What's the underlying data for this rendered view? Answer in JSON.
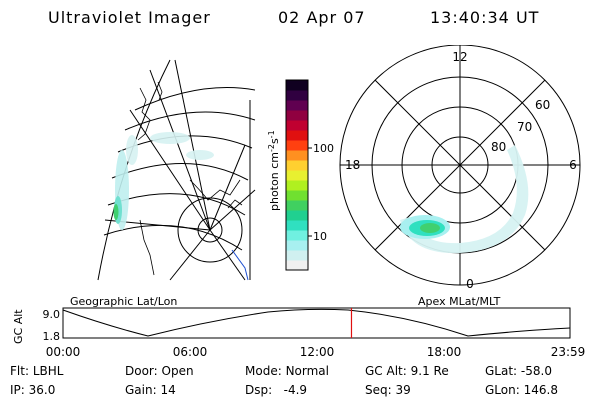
{
  "header": {
    "title": "Ultraviolet Imager",
    "date": "02 Apr 07",
    "time": "13:40:34 UT"
  },
  "colorbar": {
    "label": "photon cm",
    "label_sup1": "-2",
    "label_mid": "s",
    "label_sup2": "-1",
    "tick_high": "100",
    "tick_low": "10",
    "colors": [
      "#f0f0f0",
      "#d0f0f0",
      "#a8f0f0",
      "#70f0e0",
      "#30e0c0",
      "#20d090",
      "#40d060",
      "#70e030",
      "#b0f020",
      "#e8f030",
      "#ffd030",
      "#ff9020",
      "#ff4010",
      "#e01010",
      "#c00030",
      "#900040",
      "#600050",
      "#300040",
      "#100020"
    ]
  },
  "left_map": {
    "caption": "Geographic Lat/Lon"
  },
  "right_map": {
    "caption": "Apex MLat/MLT",
    "mlt_labels": {
      "top": "12",
      "left": "18",
      "right": "6",
      "bottom": "0"
    },
    "mlat_labels": [
      "60",
      "70",
      "80"
    ]
  },
  "altitude_plot": {
    "ylabel": "GC Alt",
    "ytick_top": "9.0",
    "ytick_bottom": "1.8",
    "xticks": [
      "00:00",
      "06:00",
      "12:00",
      "18:00",
      "23:59"
    ],
    "current_time_fraction": 0.569
  },
  "status": {
    "filter_label": "Flt:",
    "filter_value": "LBHL",
    "ip_label": "IP:",
    "ip_value": "36.0",
    "door_label": "Door:",
    "door_value": "Open",
    "gain_label": "Gain:",
    "gain_value": "14",
    "mode_label": "Mode:",
    "mode_value": "Normal",
    "dsp_label": "Dsp:",
    "dsp_value": "-4.9",
    "gcalt_label": "GC Alt:",
    "gcalt_value": "9.1 Re",
    "seq_label": "Seq:",
    "seq_value": "39",
    "glat_label": "GLat:",
    "glat_value": "-58.0",
    "glon_label": "GLon:",
    "glon_value": "146.8"
  }
}
